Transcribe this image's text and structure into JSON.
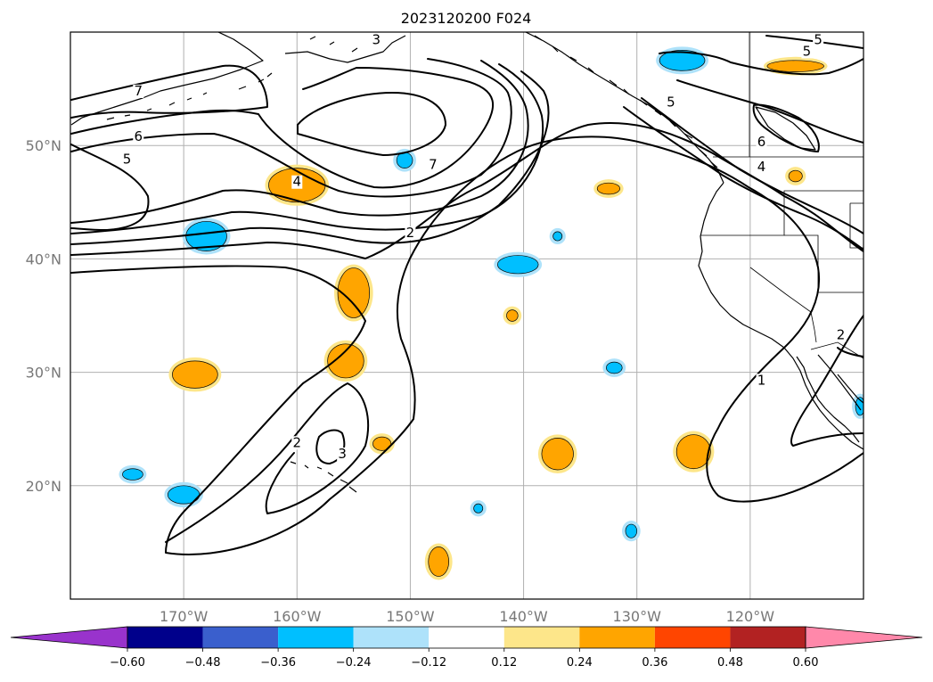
{
  "title": "2023120200 F024",
  "map": {
    "projection": "plate-carree",
    "lon_range": [
      -180,
      -110
    ],
    "lat_range": [
      10,
      60
    ],
    "lon_ticks": [
      {
        "lon": -170,
        "label": "170°W"
      },
      {
        "lon": -160,
        "label": "160°W"
      },
      {
        "lon": -150,
        "label": "150°W"
      },
      {
        "lon": -140,
        "label": "140°W"
      },
      {
        "lon": -130,
        "label": "130°W"
      },
      {
        "lon": -120,
        "label": "120°W"
      }
    ],
    "lat_ticks": [
      {
        "lat": 20,
        "label": "20°N"
      },
      {
        "lat": 30,
        "label": "30°N"
      },
      {
        "lat": 40,
        "label": "40°N"
      },
      {
        "lat": 50,
        "label": "50°N"
      }
    ],
    "gridlines": true
  },
  "contour_labels": [
    {
      "text": "7",
      "lon": -174,
      "lat": 54.5
    },
    {
      "text": "6",
      "lon": -174,
      "lat": 50.5
    },
    {
      "text": "5",
      "lon": -175,
      "lat": 48.5
    },
    {
      "text": "7",
      "lon": -148,
      "lat": 48.0
    },
    {
      "text": "4",
      "lon": -160,
      "lat": 46.5
    },
    {
      "text": "3",
      "lon": -153,
      "lat": 59.0
    },
    {
      "text": "2",
      "lon": -150,
      "lat": 42.0
    },
    {
      "text": "5",
      "lon": -114,
      "lat": 59.0
    },
    {
      "text": "5",
      "lon": -115,
      "lat": 58.0
    },
    {
      "text": "5",
      "lon": -127,
      "lat": 53.5
    },
    {
      "text": "6",
      "lon": -119,
      "lat": 50.0
    },
    {
      "text": "4",
      "lon": -119,
      "lat": 47.8
    },
    {
      "text": "2",
      "lon": -112,
      "lat": 33.0
    },
    {
      "text": "1",
      "lon": -119,
      "lat": 29.0
    },
    {
      "text": "2",
      "lon": -160,
      "lat": 23.5
    },
    {
      "text": "3",
      "lon": -156,
      "lat": 22.5
    }
  ],
  "colorbar": {
    "tick_labels": [
      "−0.60",
      "−0.48",
      "−0.36",
      "−0.24",
      "−0.12",
      "0.12",
      "0.24",
      "0.36",
      "0.48",
      "0.60"
    ],
    "colors": [
      "#9933cc",
      "#00008b",
      "#3a5fcd",
      "#00bfff",
      "#aee2fa",
      "#ffffff",
      "#fde68a",
      "#ffa500",
      "#ff4500",
      "#b22222",
      "#ff88aa"
    ],
    "extend": "both"
  },
  "shading_colors": {
    "neg_light": "#aee2fa",
    "neg_strong": "#00bfff",
    "pos_light": "#fde68a",
    "pos_strong": "#ffa500"
  },
  "anomaly_blobs": [
    {
      "sign": "pos",
      "lon": -160,
      "lat": 46.5,
      "rx": 2.5,
      "ry": 1.5
    },
    {
      "sign": "pos",
      "lon": -155,
      "lat": 37.0,
      "rx": 1.4,
      "ry": 2.2
    },
    {
      "sign": "pos",
      "lon": -155.7,
      "lat": 31.0,
      "rx": 1.6,
      "ry": 1.5
    },
    {
      "sign": "pos",
      "lon": -169,
      "lat": 29.8,
      "rx": 2.0,
      "ry": 1.2
    },
    {
      "sign": "pos",
      "lon": -152.5,
      "lat": 23.7,
      "rx": 0.8,
      "ry": 0.6
    },
    {
      "sign": "pos",
      "lon": -137,
      "lat": 22.8,
      "rx": 1.4,
      "ry": 1.4
    },
    {
      "sign": "pos",
      "lon": -125,
      "lat": 23.0,
      "rx": 1.5,
      "ry": 1.5
    },
    {
      "sign": "pos",
      "lon": -147.5,
      "lat": 13.3,
      "rx": 0.9,
      "ry": 1.3
    },
    {
      "sign": "pos",
      "lon": -132.5,
      "lat": 46.2,
      "rx": 1.0,
      "ry": 0.5
    },
    {
      "sign": "pos",
      "lon": -116,
      "lat": 57.0,
      "rx": 2.5,
      "ry": 0.5
    },
    {
      "sign": "pos",
      "lon": -116,
      "lat": 47.3,
      "rx": 0.6,
      "ry": 0.5
    },
    {
      "sign": "pos",
      "lon": -141,
      "lat": 35.0,
      "rx": 0.5,
      "ry": 0.5
    },
    {
      "sign": "neg",
      "lon": -168,
      "lat": 42.0,
      "rx": 1.8,
      "ry": 1.3
    },
    {
      "sign": "neg",
      "lon": -140.5,
      "lat": 39.5,
      "rx": 1.8,
      "ry": 0.8
    },
    {
      "sign": "neg",
      "lon": -150.5,
      "lat": 48.7,
      "rx": 0.7,
      "ry": 0.7
    },
    {
      "sign": "neg",
      "lon": -126,
      "lat": 57.5,
      "rx": 2.0,
      "ry": 0.9
    },
    {
      "sign": "neg",
      "lon": -137,
      "lat": 42.0,
      "rx": 0.4,
      "ry": 0.4
    },
    {
      "sign": "neg",
      "lon": -132,
      "lat": 30.4,
      "rx": 0.7,
      "ry": 0.5
    },
    {
      "sign": "neg",
      "lon": -174.5,
      "lat": 21.0,
      "rx": 0.9,
      "ry": 0.5
    },
    {
      "sign": "neg",
      "lon": -170,
      "lat": 19.2,
      "rx": 1.4,
      "ry": 0.8
    },
    {
      "sign": "neg",
      "lon": -144,
      "lat": 18.0,
      "rx": 0.4,
      "ry": 0.4
    },
    {
      "sign": "neg",
      "lon": -130.5,
      "lat": 16.0,
      "rx": 0.5,
      "ry": 0.6
    },
    {
      "sign": "neg",
      "lon": -110.3,
      "lat": 27.0,
      "rx": 0.4,
      "ry": 0.8
    }
  ]
}
